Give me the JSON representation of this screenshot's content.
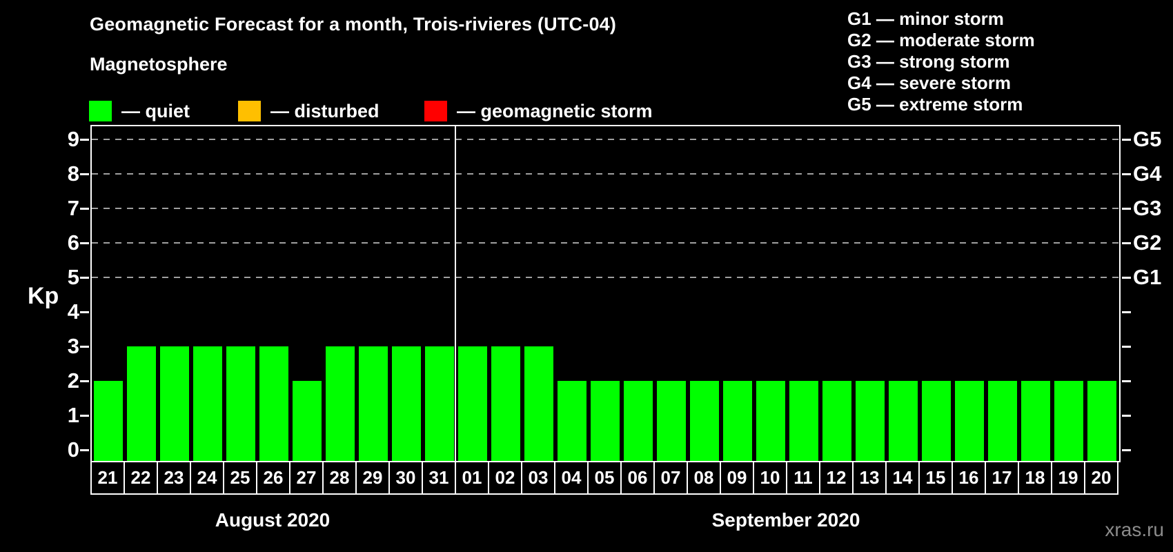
{
  "header": {
    "title": "Geomagnetic Forecast for a month, Trois-rivieres (UTC-04)",
    "subtitle": "Magnetosphere"
  },
  "legend": {
    "items": [
      {
        "name": "quiet",
        "label": "— quiet",
        "color": "#00ff00"
      },
      {
        "name": "disturbed",
        "label": "— disturbed",
        "color": "#ffbf00"
      },
      {
        "name": "geomagnetic-storm",
        "label": "— geomagnetic storm",
        "color": "#ff0000"
      }
    ]
  },
  "g_legend": {
    "items": [
      "G1 — minor storm",
      "G2 — moderate storm",
      "G3 — strong storm",
      "G4 — severe storm",
      "G5 — extreme storm"
    ]
  },
  "watermark": "xras.ru",
  "chart_data": {
    "type": "bar",
    "title": "Geomagnetic Forecast for a month, Trois-rivieres (UTC-04)",
    "ylabel": "Kp",
    "ylim": [
      0,
      9
    ],
    "yticks": [
      0,
      1,
      2,
      3,
      4,
      5,
      6,
      7,
      8,
      9
    ],
    "grid_kp_levels": [
      5,
      6,
      7,
      8,
      9
    ],
    "right_axis_labels": [
      {
        "kp": 5,
        "label": "G1"
      },
      {
        "kp": 6,
        "label": "G2"
      },
      {
        "kp": 7,
        "label": "G3"
      },
      {
        "kp": 8,
        "label": "G4"
      },
      {
        "kp": 9,
        "label": "G5"
      }
    ],
    "bar_color": "#00ff00",
    "categories": [
      "21",
      "22",
      "23",
      "24",
      "25",
      "26",
      "27",
      "28",
      "29",
      "30",
      "31",
      "01",
      "02",
      "03",
      "04",
      "05",
      "06",
      "07",
      "08",
      "09",
      "10",
      "11",
      "12",
      "13",
      "14",
      "15",
      "16",
      "17",
      "18",
      "19",
      "20"
    ],
    "values": [
      2,
      3,
      3,
      3,
      3,
      3,
      2,
      3,
      3,
      3,
      3,
      3,
      3,
      3,
      2,
      2,
      2,
      2,
      2,
      2,
      2,
      2,
      2,
      2,
      2,
      2,
      2,
      2,
      2,
      2,
      2
    ],
    "month_groups": [
      {
        "label": "August 2020",
        "start": 0,
        "count": 11
      },
      {
        "label": "September 2020",
        "start": 11,
        "count": 20
      }
    ],
    "separator_after_index": 10,
    "grid_color": "#a0a0a0",
    "legend_position": "top"
  }
}
